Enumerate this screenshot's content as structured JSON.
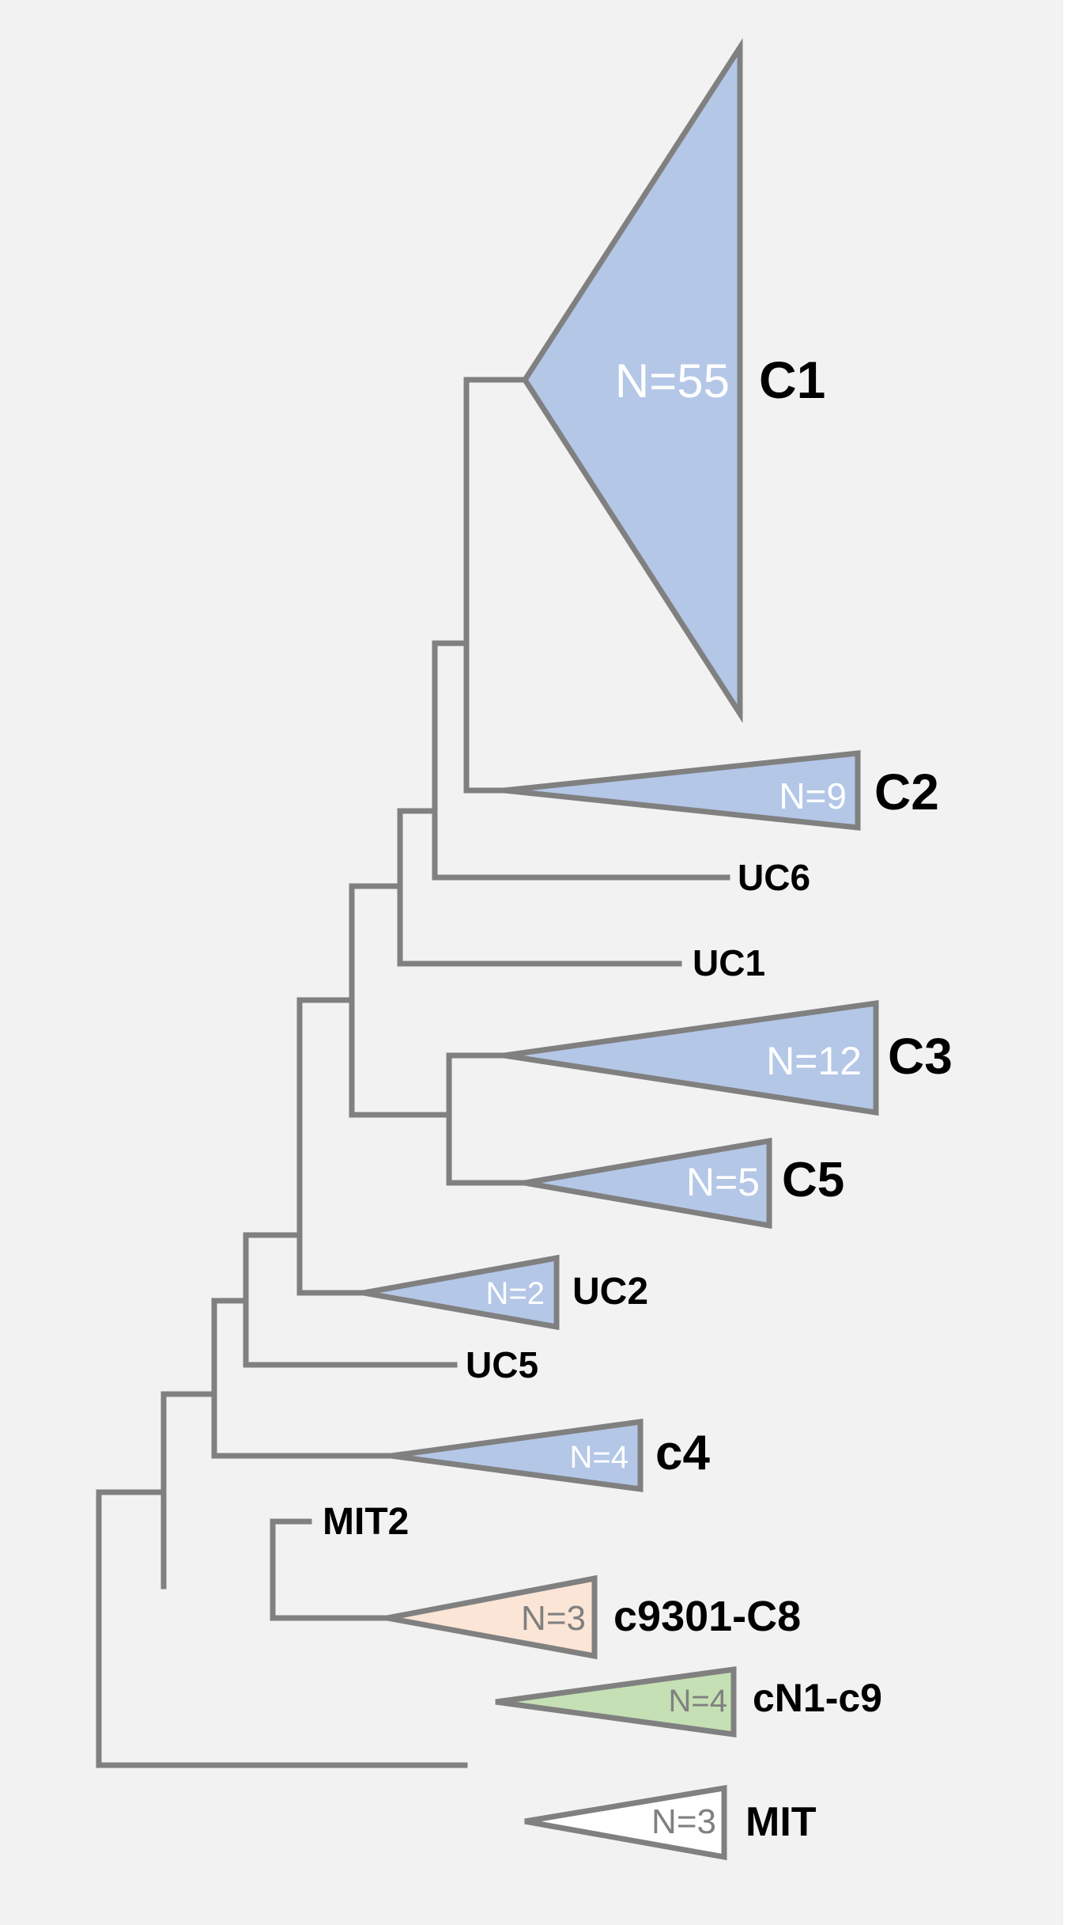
{
  "colors": {
    "background": "#f2f2f2",
    "branch": "#808080",
    "blue_fill": "#b4c7e7",
    "peach_fill": "#fbe5d6",
    "green_fill": "#c5e0b4",
    "white_fill": "#ffffff",
    "count_light": "#ffffff",
    "count_dark": "#808080",
    "label": "#000000"
  },
  "clades": {
    "c1": {
      "count": "N=55",
      "label": "C1"
    },
    "c2": {
      "count": "N=9",
      "label": "C2"
    },
    "c3": {
      "count": "N=12",
      "label": "C3"
    },
    "c5": {
      "count": "N=5",
      "label": "C5"
    },
    "uc2": {
      "count": "N=2",
      "label": "UC2"
    },
    "c4": {
      "count": "N=4",
      "label": "c4"
    },
    "c9301": {
      "count": "N=3",
      "label": "c9301-C8"
    },
    "cn1": {
      "count": "N=4",
      "label": "cN1-c9"
    },
    "mit": {
      "count": "N=3",
      "label": "MIT"
    }
  },
  "leaves": {
    "uc6": "UC6",
    "uc1": "UC1",
    "uc5": "UC5",
    "mit2": "MIT2"
  }
}
